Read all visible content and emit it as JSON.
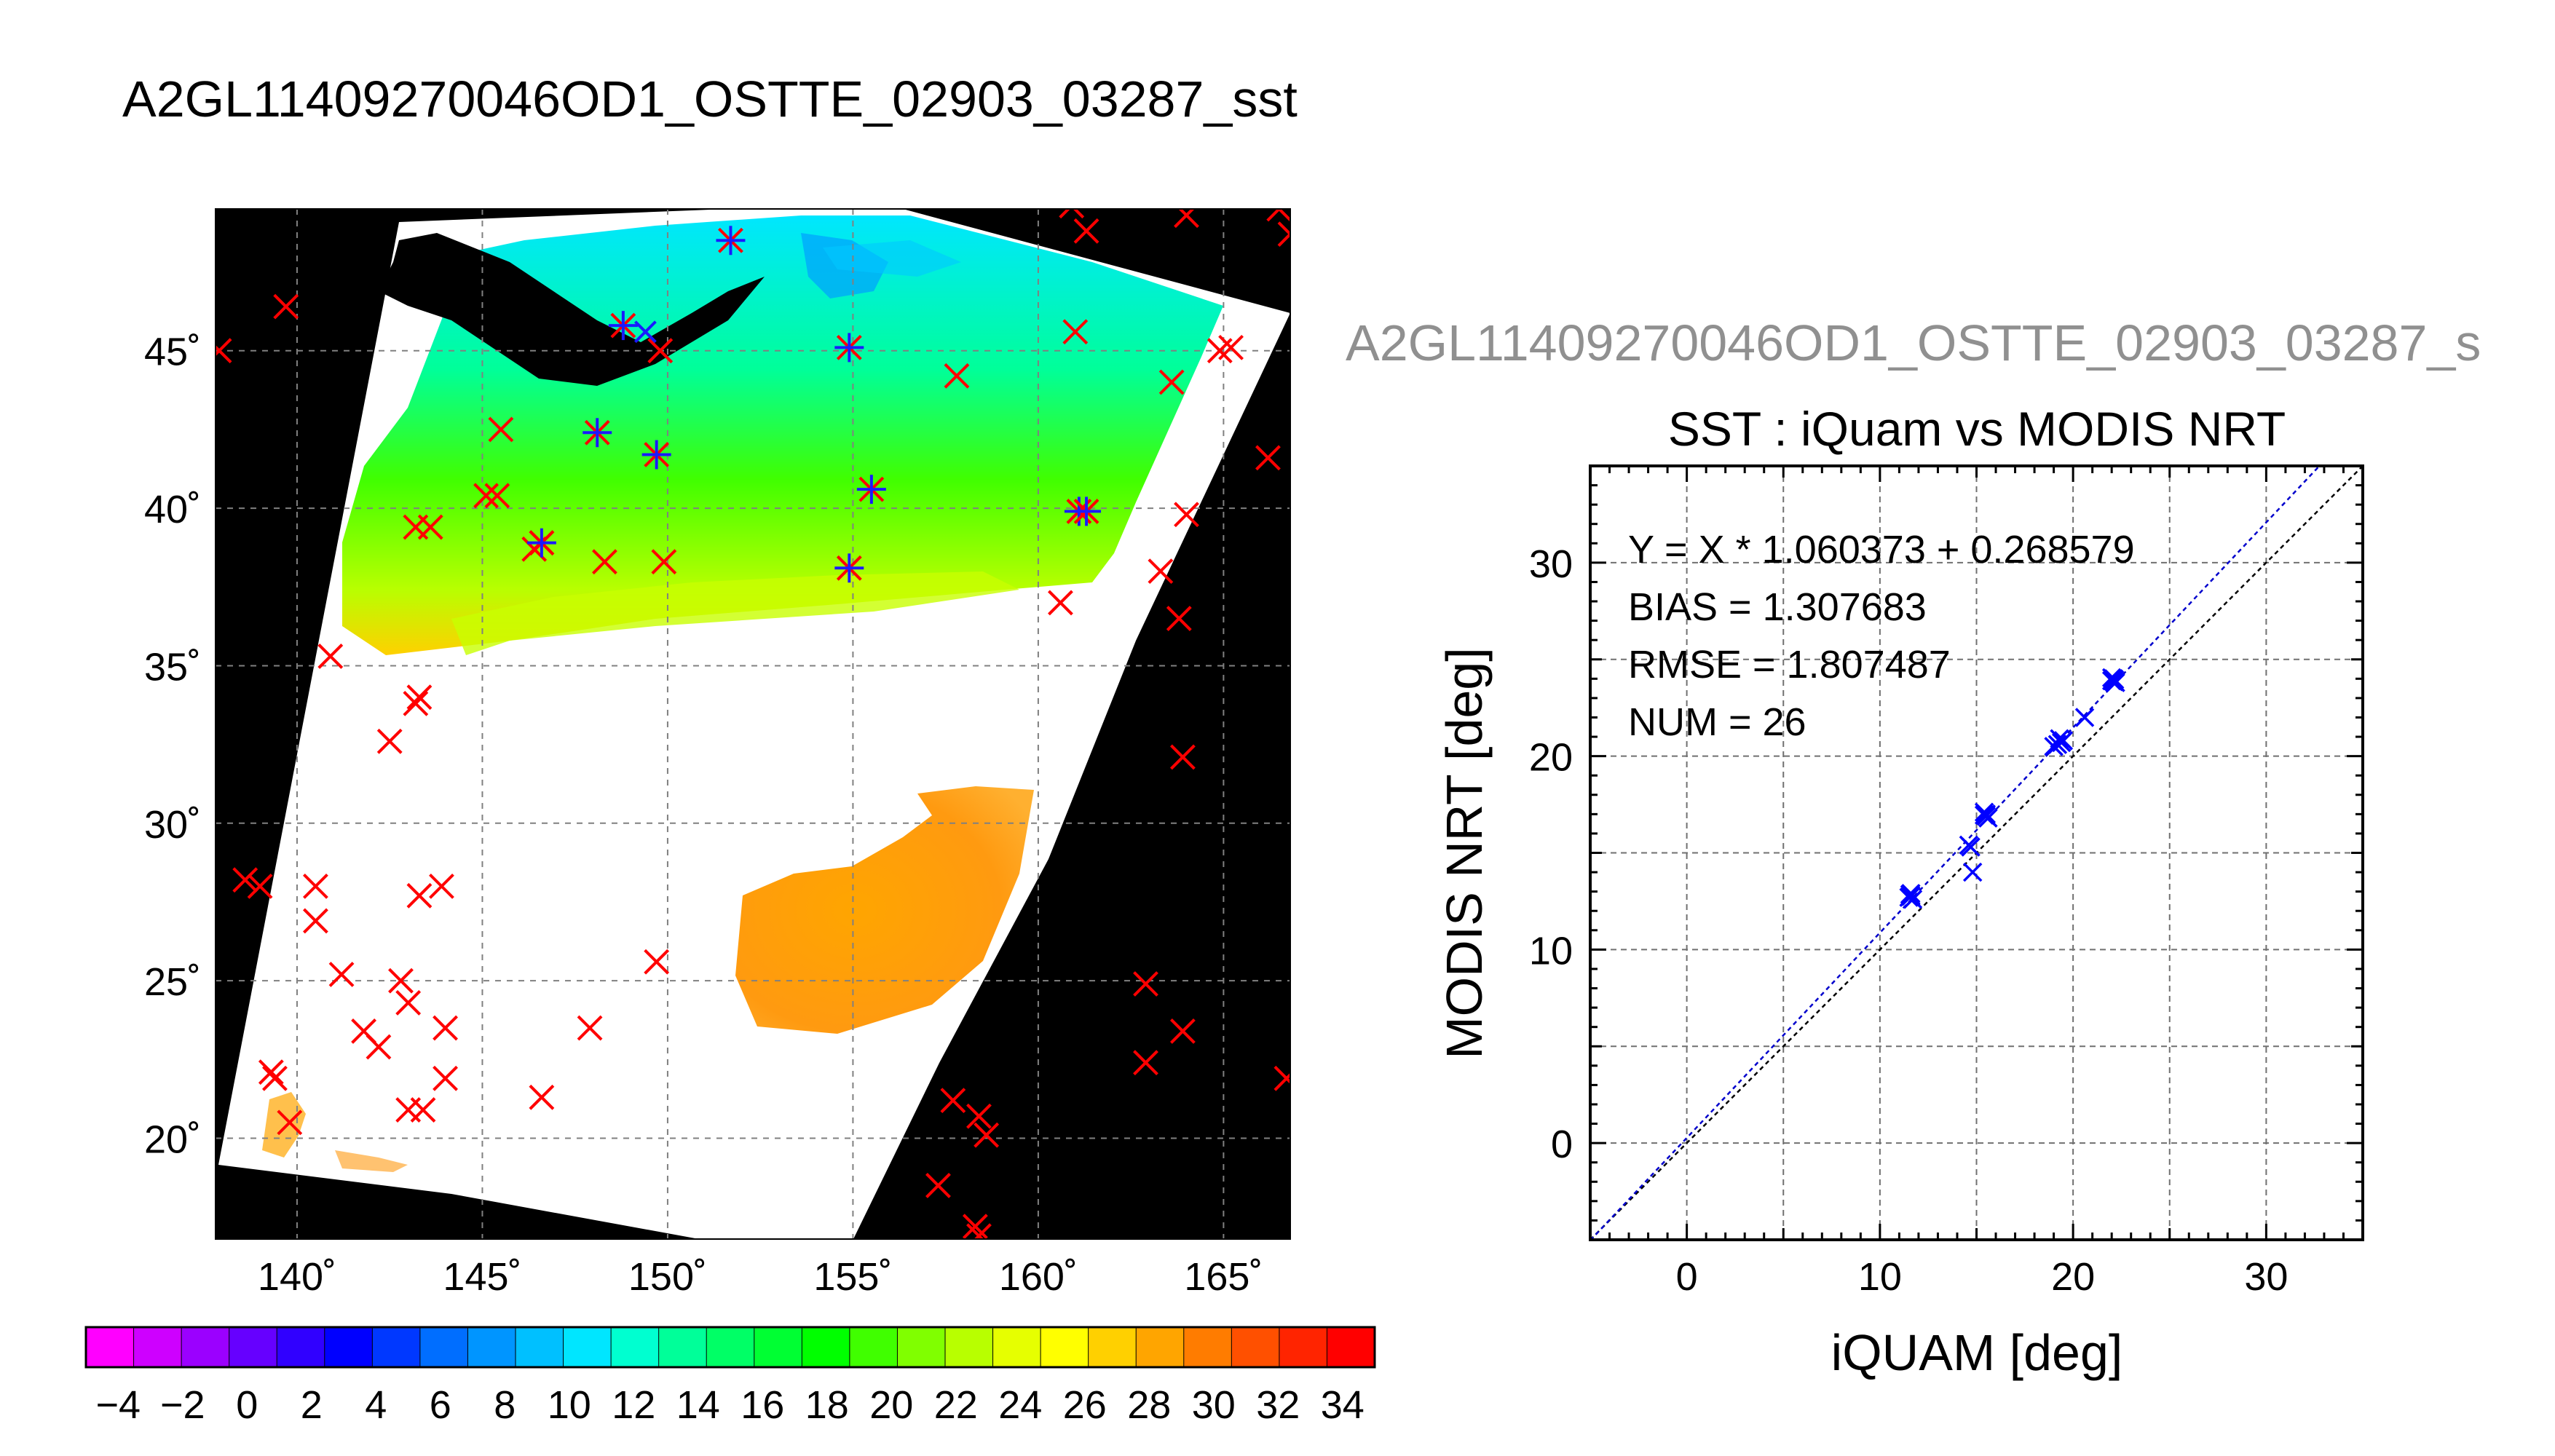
{
  "figure": {
    "main_title": "A2GL11409270046OD1_OSTTE_02903_03287_sst",
    "sub_title": "A2GL11409270046OD1_OSTTE_02903_03287_s"
  },
  "chart_data": [
    {
      "type": "map",
      "panel": "left",
      "lon_ticks": [
        "140˚",
        "145˚",
        "150˚",
        "155˚",
        "160˚",
        "165˚"
      ],
      "lat_ticks": [
        "20˚",
        "25˚",
        "30˚",
        "35˚",
        "40˚",
        "45˚"
      ],
      "lon_values": [
        140,
        145,
        150,
        155,
        160,
        165
      ],
      "lat_values": [
        20,
        25,
        30,
        35,
        40,
        45
      ],
      "xlim": [
        137.8,
        166.8
      ],
      "ylim": [
        16.8,
        49.5
      ],
      "grid": true,
      "colors": {
        "background": "#000000",
        "cloud": "#ffffff",
        "marker_red": "#ff0000",
        "marker_blue": "#1a1aff"
      },
      "red_markers": [
        [
          139.7,
          46.4
        ],
        [
          137.9,
          45.0
        ],
        [
          145.5,
          42.5
        ],
        [
          145.1,
          40.4
        ],
        [
          145.4,
          40.4
        ],
        [
          143.2,
          39.4
        ],
        [
          143.6,
          39.4
        ],
        [
          146.6,
          38.9
        ],
        [
          146.4,
          38.7
        ],
        [
          148.3,
          38.3
        ],
        [
          149.9,
          38.3
        ],
        [
          149.8,
          45.0
        ],
        [
          157.8,
          44.2
        ],
        [
          161.0,
          45.6
        ],
        [
          164.9,
          45.0
        ],
        [
          165.2,
          45.1
        ],
        [
          163.6,
          44.0
        ],
        [
          166.2,
          41.6
        ],
        [
          164.0,
          39.8
        ],
        [
          163.3,
          38.0
        ],
        [
          160.6,
          37.0
        ],
        [
          163.8,
          36.5
        ],
        [
          140.9,
          35.3
        ],
        [
          143.3,
          34.0
        ],
        [
          143.2,
          33.8
        ],
        [
          142.5,
          32.6
        ],
        [
          163.9,
          32.1
        ],
        [
          138.6,
          28.2
        ],
        [
          139.0,
          28.0
        ],
        [
          140.5,
          28.0
        ],
        [
          140.5,
          26.9
        ],
        [
          143.3,
          27.7
        ],
        [
          143.9,
          28.0
        ],
        [
          149.7,
          25.6
        ],
        [
          141.2,
          25.2
        ],
        [
          142.8,
          25.0
        ],
        [
          143.0,
          24.3
        ],
        [
          162.9,
          24.9
        ],
        [
          141.8,
          23.4
        ],
        [
          142.2,
          22.9
        ],
        [
          144.0,
          23.5
        ],
        [
          147.9,
          23.5
        ],
        [
          163.9,
          23.4
        ],
        [
          162.9,
          22.4
        ],
        [
          139.3,
          22.1
        ],
        [
          139.4,
          21.9
        ],
        [
          144.0,
          21.9
        ],
        [
          146.6,
          21.3
        ],
        [
          143.0,
          20.9
        ],
        [
          143.4,
          20.9
        ],
        [
          139.8,
          20.5
        ],
        [
          157.7,
          21.2
        ],
        [
          158.4,
          20.7
        ],
        [
          158.6,
          20.1
        ],
        [
          166.7,
          21.9
        ],
        [
          157.3,
          18.5
        ],
        [
          158.3,
          17.2
        ],
        [
          158.4,
          16.9
        ],
        [
          160.9,
          49.6
        ],
        [
          161.3,
          48.8
        ],
        [
          164.0,
          49.3
        ],
        [
          166.5,
          49.5
        ],
        [
          166.8,
          48.7
        ]
      ],
      "blue_markers": [
        [
          151.7,
          48.5
        ],
        [
          148.8,
          45.8
        ],
        [
          154.9,
          45.1
        ],
        [
          148.1,
          42.4
        ],
        [
          149.7,
          41.7
        ],
        [
          146.6,
          38.9
        ],
        [
          155.5,
          40.6
        ],
        [
          161.1,
          39.9
        ],
        [
          161.3,
          39.9
        ],
        [
          154.9,
          38.1
        ]
      ],
      "overpass_markers": [
        [
          149.4,
          45.6
        ]
      ]
    },
    {
      "type": "colorbar",
      "ticks": [
        "-4",
        "-2",
        "0",
        "2",
        "4",
        "6",
        "8",
        "10",
        "12",
        "14",
        "16",
        "18",
        "20",
        "22",
        "24",
        "26",
        "28",
        "30",
        "32",
        "34"
      ],
      "range": [
        -5,
        35
      ],
      "colors": [
        "#ff00ff",
        "#ce00ff",
        "#9b00ff",
        "#6600ff",
        "#3000ff",
        "#0000ff",
        "#0038ff",
        "#006eff",
        "#0095ff",
        "#00c0ff",
        "#00e6ff",
        "#00ffd0",
        "#00ff99",
        "#00ff66",
        "#00ff33",
        "#00ff00",
        "#40ff00",
        "#80ff00",
        "#b8ff00",
        "#e6ff00",
        "#ffff00",
        "#ffd000",
        "#ffa500",
        "#ff7c00",
        "#ff5000",
        "#ff2400",
        "#ff0000"
      ]
    },
    {
      "type": "scatter",
      "panel": "right",
      "title": "SST : iQuam vs MODIS NRT",
      "xlabel": "iQUAM [deg]",
      "ylabel": "MODIS NRT [deg]",
      "xlim": [
        -5,
        35
      ],
      "ylim": [
        -5,
        35
      ],
      "x_ticks": [
        "0",
        "10",
        "20",
        "30"
      ],
      "y_ticks": [
        "0",
        "10",
        "20",
        "30"
      ],
      "x_tick_values": [
        0,
        10,
        20,
        30
      ],
      "y_tick_values": [
        0,
        10,
        20,
        30
      ],
      "grid": true,
      "stats": [
        "Y = X * 1.060373 + 0.268579",
        "BIAS = 1.307683",
        "RMSE = 1.807487",
        "NUM = 26"
      ],
      "fit": {
        "slope": 1.060373,
        "intercept": 0.268579,
        "color": "#0000cc"
      },
      "identity_color": "#000000",
      "point_color": "#0000ff",
      "points": [
        [
          11.6,
          12.9
        ],
        [
          11.6,
          12.8
        ],
        [
          11.5,
          12.7
        ],
        [
          11.7,
          12.6
        ],
        [
          11.6,
          12.75
        ],
        [
          11.55,
          12.85
        ],
        [
          14.6,
          15.4
        ],
        [
          14.8,
          14.0
        ],
        [
          15.4,
          17.1
        ],
        [
          15.5,
          16.9
        ],
        [
          15.6,
          16.8
        ],
        [
          15.4,
          16.95
        ],
        [
          15.5,
          17.0
        ],
        [
          19.0,
          20.5
        ],
        [
          19.3,
          20.9
        ],
        [
          19.5,
          20.8
        ],
        [
          19.2,
          20.6
        ],
        [
          19.4,
          20.7
        ],
        [
          20.6,
          22.0
        ],
        [
          22.0,
          23.9
        ],
        [
          22.1,
          24.0
        ],
        [
          22.2,
          23.8
        ],
        [
          22.0,
          24.05
        ],
        [
          22.1,
          23.85
        ],
        [
          22.15,
          23.95
        ],
        [
          14.7,
          15.3
        ]
      ]
    }
  ]
}
